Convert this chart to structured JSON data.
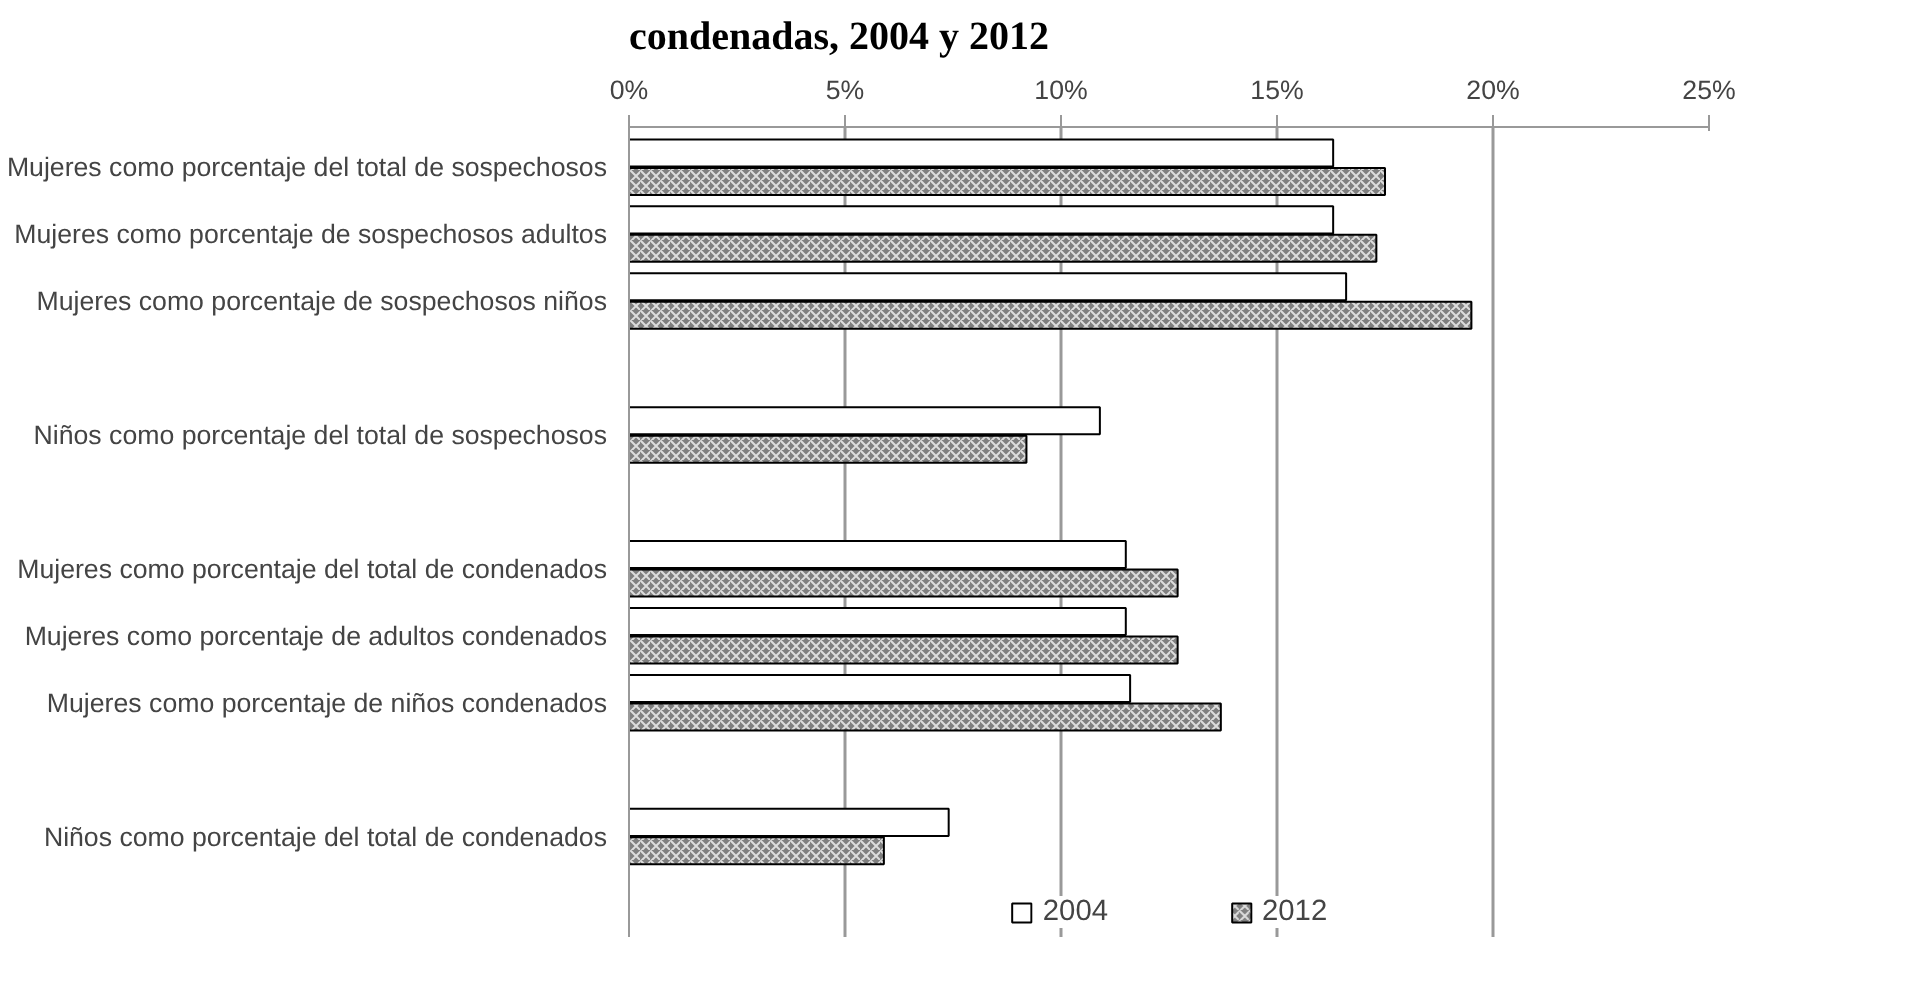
{
  "chart_data": {
    "type": "bar",
    "orientation": "horizontal",
    "title": "condenadas, 2004 y 2012",
    "categories": [
      "Mujeres como porcentaje del total de sospechosos",
      "Mujeres como porcentaje de sospechosos adultos",
      "Mujeres como porcentaje de sospechosos niños",
      null,
      "Niños como porcentaje del total de sospechosos",
      null,
      "Mujeres como porcentaje del total de condenados",
      "Mujeres como porcentaje de adultos condenados",
      "Mujeres como porcentaje de niños condenados",
      null,
      "Niños como porcentaje del total de condenados"
    ],
    "series": [
      {
        "name": "2004",
        "color": "#ffffff",
        "values": [
          16.3,
          16.3,
          16.6,
          null,
          10.9,
          null,
          11.5,
          11.5,
          11.6,
          null,
          7.4
        ]
      },
      {
        "name": "2012",
        "color": "#7f7f7f",
        "values": [
          17.5,
          17.3,
          19.5,
          null,
          9.2,
          null,
          12.7,
          12.7,
          13.7,
          null,
          5.9
        ]
      }
    ],
    "xlim": [
      0,
      25
    ],
    "xticks": [
      {
        "value": 0,
        "label": "0%"
      },
      {
        "value": 5,
        "label": "5%"
      },
      {
        "value": 10,
        "label": "10%"
      },
      {
        "value": 15,
        "label": "15%"
      },
      {
        "value": 20,
        "label": "20%"
      },
      {
        "value": 25,
        "label": "25%"
      }
    ],
    "grid": "x",
    "legend": "bottom"
  }
}
